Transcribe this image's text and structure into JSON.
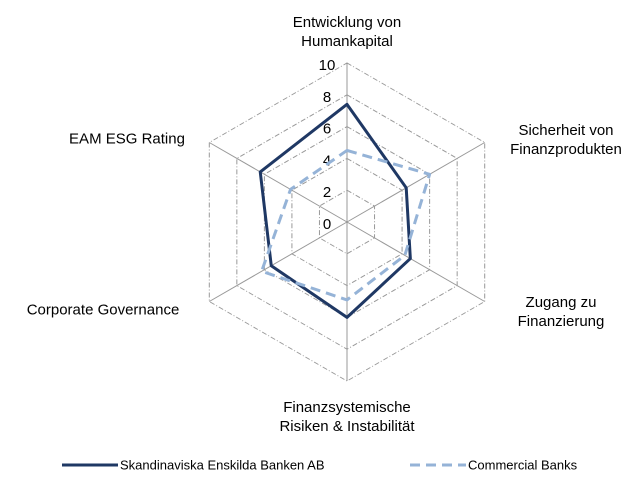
{
  "chart_data": {
    "type": "radar",
    "categories": [
      "Entwicklung von\nHumankapital",
      "Sicherheit von\nFinanzprodukten",
      "Zugang zu\nFinanzierung",
      "Finanzsystemische\nRisiken & Instabilität",
      "Corporate Governance",
      "EAM ESG Rating"
    ],
    "series": [
      {
        "name": "Skandinaviska Enskilda Banken AB",
        "color": "#1f3864",
        "values": [
          7.4,
          4.3,
          4.6,
          6.0,
          5.5,
          6.3
        ]
      },
      {
        "name": "Commercial Banks",
        "color": "#95b3d7",
        "values": [
          4.5,
          6.0,
          4.2,
          4.9,
          6.2,
          4.1
        ]
      }
    ],
    "ylim": [
      0,
      10
    ],
    "yticks": [
      0,
      2,
      4,
      6,
      8,
      10
    ],
    "grid": true
  }
}
